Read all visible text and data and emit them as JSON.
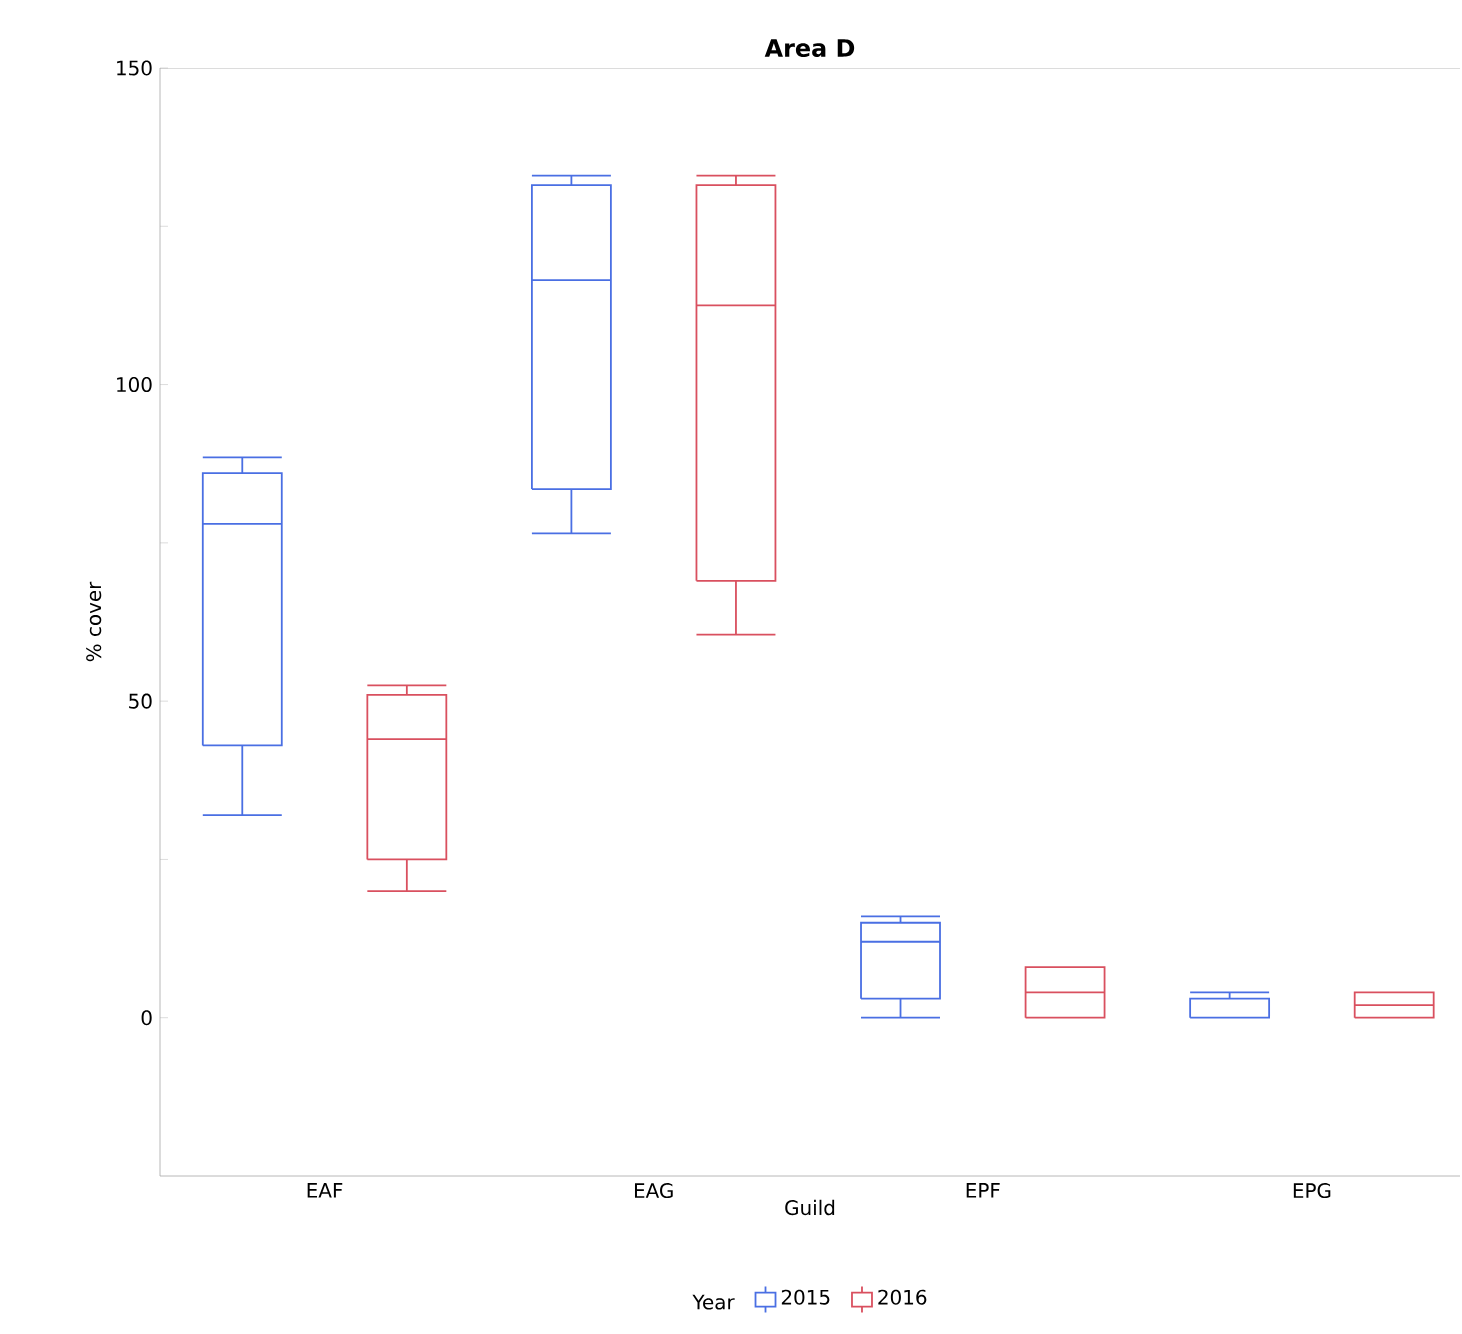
{
  "chart_data": {
    "type": "box",
    "title": "Area D",
    "xlabel": "Guild",
    "ylabel": "% cover",
    "legend_title": "Year",
    "legend": "bottom",
    "categories": [
      "EAF",
      "EAG",
      "EPF",
      "EPG"
    ],
    "ylim": [
      -25,
      150
    ],
    "yticks": [
      0,
      {
        "value": 25,
        "label": null
      },
      50,
      {
        "value": 75,
        "label": null
      },
      100,
      {
        "value": 125,
        "label": null
      },
      150
    ],
    "series": [
      {
        "name": "2015",
        "color": "#4a6fe3",
        "boxes": [
          {
            "low": 32,
            "q1": 43,
            "median": 78,
            "q3": 86,
            "high": 88.5
          },
          {
            "low": 76.5,
            "q1": 83.5,
            "median": 116.5,
            "q3": 131.5,
            "high": 133
          },
          {
            "low": 0,
            "q1": 3,
            "median": 12,
            "q3": 15,
            "high": 16
          },
          {
            "low": 0,
            "q1": 0,
            "median": 0,
            "q3": 3,
            "high": 4
          }
        ]
      },
      {
        "name": "2016",
        "color": "#d9505f",
        "boxes": [
          {
            "low": 20,
            "q1": 25,
            "median": 44,
            "q3": 51,
            "high": 52.5
          },
          {
            "low": 60.5,
            "q1": 69,
            "median": 112.5,
            "q3": 131.5,
            "high": 133
          },
          {
            "low": 0,
            "q1": 0,
            "median": 4,
            "q3": 8,
            "high": 8
          },
          {
            "low": 0,
            "q1": 0,
            "median": 2,
            "q3": 4,
            "high": 4
          }
        ]
      }
    ]
  }
}
